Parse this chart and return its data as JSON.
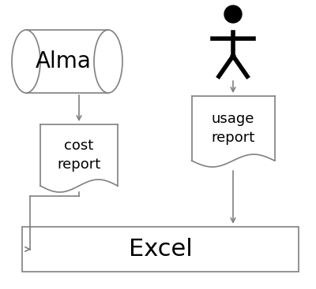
{
  "bg_color": "#ffffff",
  "alma_text": "Alma",
  "cost_report_text": "cost\nreport",
  "usage_report_text": "usage\nreport",
  "excel_text": "Excel",
  "line_color": "#808080",
  "text_color": "#000000",
  "shape_edge_color": "#808080",
  "figsize": [
    4.0,
    3.67
  ],
  "dpi": 100
}
